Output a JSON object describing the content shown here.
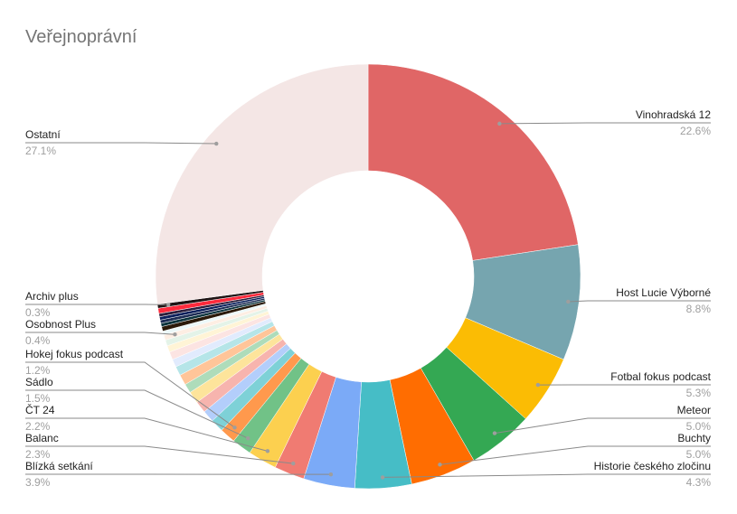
{
  "chart_data": {
    "type": "pie",
    "variant": "donut",
    "title": "Veřejnoprávní",
    "start": "top",
    "direction": "clockwise",
    "slices": [
      {
        "name": "Vinohradská 12",
        "value": 22.6,
        "label": "22.6%",
        "color": "#e06666"
      },
      {
        "name": "Host Lucie Výborné",
        "value": 8.8,
        "label": "8.8%",
        "color": "#76a5af"
      },
      {
        "name": "Fotbal fokus podcast",
        "value": 5.3,
        "label": "5.3%",
        "color": "#fbbc04"
      },
      {
        "name": "Meteor",
        "value": 5.0,
        "label": "5.0%",
        "color": "#34a853"
      },
      {
        "name": "Buchty",
        "value": 5.0,
        "label": "5.0%",
        "color": "#ff6d01"
      },
      {
        "name": "Historie českého zločinu",
        "value": 4.3,
        "label": "4.3%",
        "color": "#46bdc6"
      },
      {
        "name": "Blízká setkání",
        "value": 3.9,
        "label": "3.9%",
        "color": "#7baaf7"
      },
      {
        "name": "Balanc",
        "value": 2.3,
        "label": "2.3%",
        "color": "#f07b72"
      },
      {
        "name": "ČT 24",
        "value": 2.2,
        "label": "2.2%",
        "color": "#fcd04f"
      },
      {
        "name": "Sádlo",
        "value": 1.5,
        "label": "1.5%",
        "color": "#71c287"
      },
      {
        "name": "Hokej fokus podcast",
        "value": 1.2,
        "label": "1.2%",
        "color": "#ff994d"
      },
      {
        "name": null,
        "value": 1.0,
        "color": "#7ed1d7"
      },
      {
        "name": null,
        "value": 0.9,
        "color": "#b3cefb"
      },
      {
        "name": null,
        "value": 0.9,
        "color": "#f7b4ae"
      },
      {
        "name": null,
        "value": 0.9,
        "color": "#fde49b"
      },
      {
        "name": null,
        "value": 0.7,
        "color": "#aedcba"
      },
      {
        "name": null,
        "value": 0.8,
        "color": "#ffc599"
      },
      {
        "name": null,
        "value": 0.7,
        "color": "#b5e5e8"
      },
      {
        "name": null,
        "value": 0.6,
        "color": "#e1ebfd"
      },
      {
        "name": null,
        "value": 0.6,
        "color": "#fce4e2"
      },
      {
        "name": null,
        "value": 0.5,
        "color": "#fff4d6"
      },
      {
        "name": null,
        "value": 0.45,
        "color": "#e4f3e8"
      },
      {
        "name": "Osobnost Plus",
        "value": 0.4,
        "label": "0.4%",
        "color": "#fdeee3"
      },
      {
        "name": null,
        "value": 0.3,
        "color": "#ecf8f9"
      },
      {
        "name": null,
        "value": 0.35,
        "color": "#2b1a0a"
      },
      {
        "name": null,
        "value": 0.25,
        "color": "#0c343d"
      },
      {
        "name": null,
        "value": 0.25,
        "color": "#1c2c55"
      },
      {
        "name": null,
        "value": 0.25,
        "color": "#0b1f5c"
      },
      {
        "name": null,
        "value": 0.25,
        "color": "#2d1f3d"
      },
      {
        "name": null,
        "value": 0.4,
        "color": "#ff2a3c"
      },
      {
        "name": "Archiv plus",
        "value": 0.3,
        "label": "0.3%",
        "color": "#1f1414"
      },
      {
        "name": "Ostatní",
        "value": 27.1,
        "label": "27.1%",
        "color": "#f4e6e5"
      }
    ]
  }
}
